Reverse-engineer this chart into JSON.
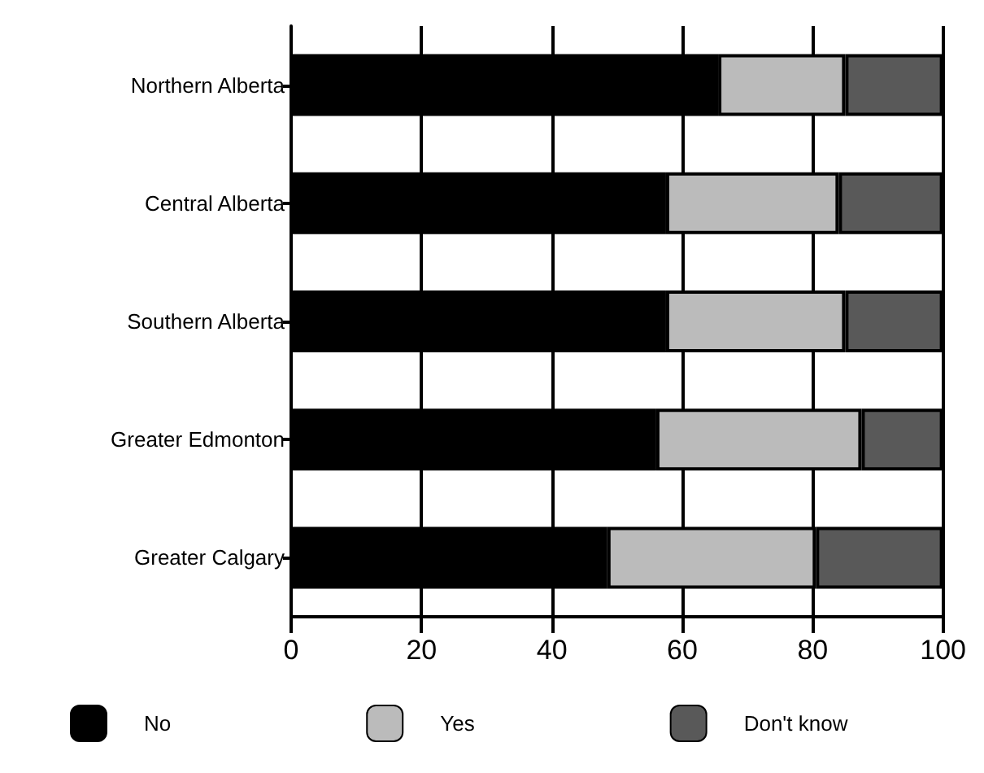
{
  "chart_data": {
    "type": "bar",
    "orientation": "horizontal",
    "stacked": true,
    "categories": [
      "Northern Alberta",
      "Central Alberta",
      "Southern Alberta",
      "Greater Edmonton",
      "Greater Calgary"
    ],
    "series": [
      {
        "name": "No",
        "color": "#000000",
        "values": [
          65.5,
          57.5,
          57.5,
          56,
          48.5
        ]
      },
      {
        "name": "Yes",
        "color": "#bbbbbb",
        "values": [
          19.5,
          26.5,
          27.5,
          31.5,
          32
        ]
      },
      {
        "name": "Don't know",
        "color": "#595959",
        "values": [
          15,
          16,
          15,
          12.5,
          19.5
        ]
      }
    ],
    "xlim": [
      0,
      100
    ],
    "xticks": [
      0,
      20,
      40,
      60,
      80,
      100
    ],
    "grid": "x",
    "legend": "bottom"
  }
}
